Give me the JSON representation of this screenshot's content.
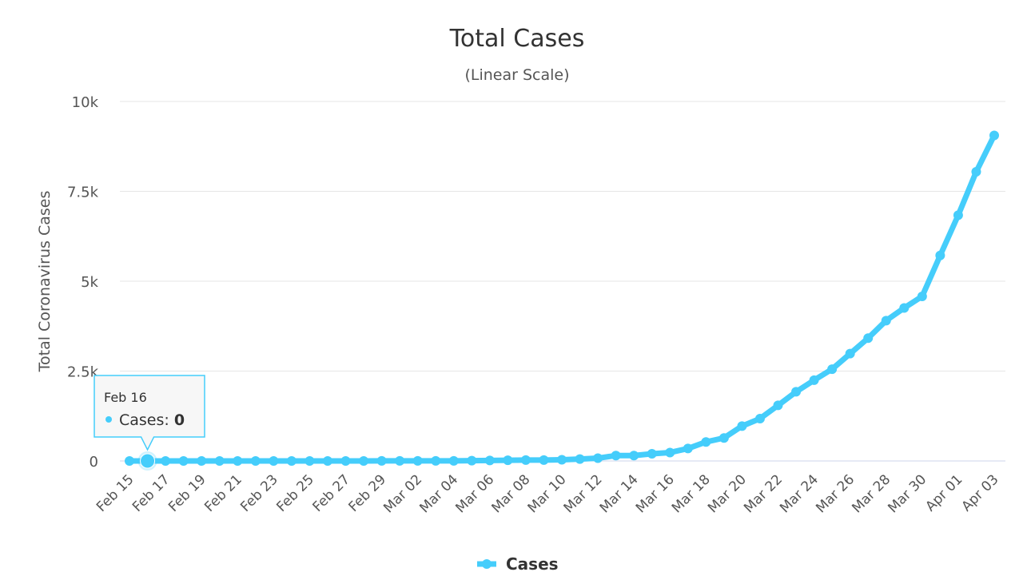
{
  "chart_data": {
    "type": "line",
    "title": "Total Cases",
    "subtitle": "(Linear Scale)",
    "y_label": "Total Coronavirus Cases",
    "categories": [
      "Feb 15",
      null,
      "Feb 17",
      null,
      "Feb 19",
      null,
      "Feb 21",
      null,
      "Feb 23",
      null,
      "Feb 25",
      null,
      "Feb 27",
      null,
      "Feb 29",
      null,
      "Mar 02",
      null,
      "Mar 04",
      null,
      "Mar 06",
      null,
      "Mar 08",
      null,
      "Mar 10",
      null,
      "Mar 12",
      null,
      "Mar 14",
      null,
      "Mar 16",
      null,
      "Mar 18",
      null,
      "Mar 20",
      null,
      "Mar 22",
      null,
      "Mar 24",
      null,
      "Mar 26",
      null,
      "Mar 28",
      null,
      "Mar 30",
      null,
      "Apr 01",
      null,
      "Apr 03"
    ],
    "series": [
      {
        "name": "Cases",
        "color": "#45cdfb",
        "values": [
          0,
          0,
          0,
          0,
          0,
          0,
          0,
          0,
          0,
          0,
          0,
          1,
          1,
          1,
          2,
          2,
          2,
          2,
          4,
          8,
          13,
          19,
          25,
          25,
          34,
          52,
          77,
          151,
          151,
          200,
          234,
          346,
          529,
          640,
          970,
          1178,
          1546,
          1924,
          2247,
          2554,
          2985,
          3417,
          3904,
          4256,
          4579,
          5717,
          6836,
          8044,
          9056
        ]
      }
    ],
    "ylim": [
      0,
      10000
    ],
    "yticks": [
      0,
      {
        "value": 2500,
        "label": "2.5k"
      },
      {
        "value": 5000,
        "label": "5k"
      },
      {
        "value": 7500,
        "label": "7.5k"
      },
      {
        "value": 10000,
        "label": "10k"
      }
    ],
    "grid": true,
    "legend": "bottom",
    "tooltip": {
      "index": 1,
      "label": "Feb 16"
    }
  }
}
